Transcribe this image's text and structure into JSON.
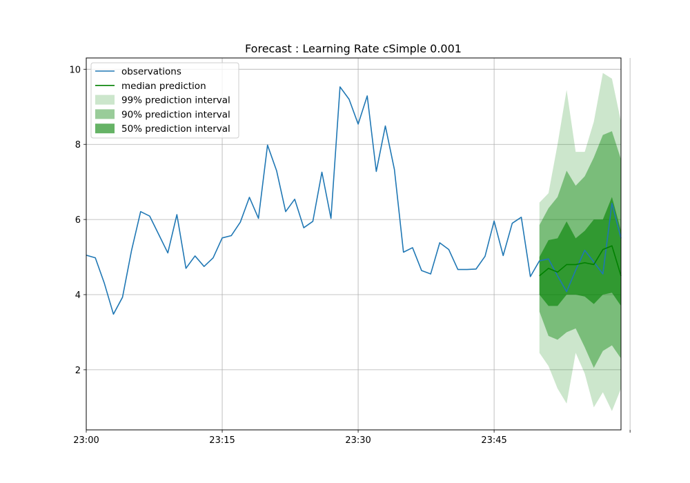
{
  "chart_data": {
    "type": "line",
    "title": "Forecast : Learning Rate cSimple 0.001",
    "xlabel": "",
    "ylabel": "",
    "x_ticks": [
      "23:00",
      "23:15",
      "23:30",
      "23:45",
      ""
    ],
    "y_ticks": [
      2,
      4,
      6,
      8,
      10
    ],
    "ylim": [
      0.4,
      10.3
    ],
    "xlim": [
      0,
      59
    ],
    "grid": true,
    "legend_position": "top-left",
    "colors": {
      "observations": "#1f77b4",
      "median": "#008000",
      "interval": "#008000"
    },
    "observations": {
      "name": "observations",
      "minutes": [
        0,
        1,
        2,
        3,
        4,
        5,
        6,
        7,
        8,
        9,
        10,
        11,
        12,
        13,
        14,
        15,
        16,
        17,
        18,
        19,
        20,
        21,
        22,
        23,
        24,
        25,
        26,
        27,
        28,
        29,
        30,
        31,
        32,
        33,
        34,
        35,
        36,
        37,
        38,
        39,
        40,
        41,
        42,
        43,
        44,
        45,
        46,
        47,
        48,
        49,
        50,
        51,
        52,
        53,
        54,
        55,
        56,
        57,
        58,
        59
      ],
      "values": [
        5.05,
        4.98,
        4.3,
        3.48,
        3.93,
        5.18,
        6.21,
        6.09,
        5.6,
        5.11,
        6.13,
        4.7,
        5.03,
        4.75,
        4.98,
        5.51,
        5.57,
        5.93,
        6.59,
        6.03,
        7.98,
        7.3,
        6.21,
        6.54,
        5.78,
        5.95,
        7.26,
        6.03,
        9.53,
        9.2,
        8.54,
        9.29,
        7.28,
        8.49,
        7.33,
        5.13,
        5.25,
        4.64,
        4.55,
        5.38,
        5.2,
        4.67,
        4.67,
        4.68,
        5.02,
        5.96,
        5.04,
        5.9,
        6.06,
        4.48,
        4.9,
        4.95,
        4.5,
        4.08,
        4.65,
        5.18,
        4.87,
        4.55,
        6.43,
        5.5
      ]
    },
    "forecast": {
      "minutes": [
        50,
        51,
        52,
        53,
        54,
        55,
        56,
        57,
        58,
        59
      ],
      "median": {
        "name": "median prediction",
        "values": [
          4.5,
          4.7,
          4.6,
          4.8,
          4.8,
          4.85,
          4.8,
          5.2,
          5.3,
          4.5
        ]
      },
      "bands": [
        {
          "name": "99% prediction interval",
          "opacity": 0.2,
          "lower": [
            2.45,
            2.1,
            1.5,
            1.1,
            2.45,
            1.9,
            1.0,
            1.4,
            0.9,
            1.5
          ],
          "upper": [
            6.45,
            6.7,
            8.0,
            9.45,
            7.8,
            7.8,
            8.6,
            9.9,
            9.75,
            8.6
          ]
        },
        {
          "name": "90% prediction interval",
          "opacity": 0.4,
          "lower": [
            3.55,
            2.9,
            2.8,
            3.0,
            3.1,
            2.6,
            2.05,
            2.5,
            2.65,
            2.3
          ],
          "upper": [
            5.85,
            6.3,
            6.6,
            7.3,
            6.9,
            7.15,
            7.65,
            8.25,
            8.35,
            7.6
          ]
        },
        {
          "name": "50% prediction interval",
          "opacity": 0.6,
          "lower": [
            4.0,
            3.7,
            3.7,
            4.0,
            4.0,
            3.95,
            3.75,
            4.0,
            4.05,
            3.7
          ],
          "upper": [
            5.0,
            5.45,
            5.5,
            5.95,
            5.5,
            5.7,
            6.0,
            6.0,
            6.6,
            5.7
          ]
        }
      ]
    },
    "legend": [
      {
        "label": "observations",
        "kind": "line",
        "color": "#1f77b4",
        "opacity": 1
      },
      {
        "label": "median prediction",
        "kind": "line",
        "color": "#008000",
        "opacity": 1
      },
      {
        "label": "99% prediction interval",
        "kind": "patch",
        "color": "#008000",
        "opacity": 0.2
      },
      {
        "label": "90% prediction interval",
        "kind": "patch",
        "color": "#008000",
        "opacity": 0.4
      },
      {
        "label": "50% prediction interval",
        "kind": "patch",
        "color": "#008000",
        "opacity": 0.6
      }
    ]
  }
}
